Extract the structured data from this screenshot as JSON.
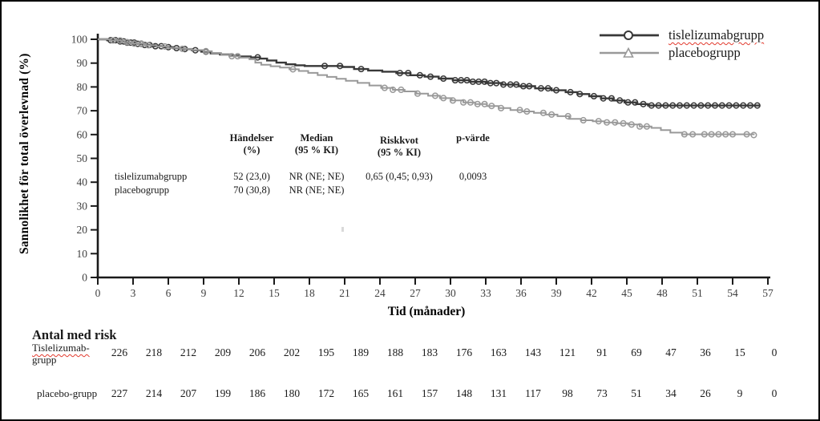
{
  "frame": {
    "bg": "#ffffff",
    "border_color": "#000000"
  },
  "chart": {
    "ylabel": "Sannolikhet för total överlevnad (%)",
    "xlabel": "Tid (månader)",
    "axis_color": "#1a1a1a",
    "tick_label_color": "#3f3f3f",
    "legend": [
      {
        "label": "tislelizumabgrupp",
        "marker": "circle",
        "color": "#383838"
      },
      {
        "label": "placebogrupp",
        "marker": "triangle",
        "color": "#999999"
      }
    ]
  },
  "chart_data": {
    "type": "line",
    "subtype": "kaplan-meier-step",
    "title": "",
    "xlabel": "Tid (månader)",
    "ylabel": "Sannolikhet för total överlevnad (%)",
    "xlim": [
      0,
      57
    ],
    "ylim": [
      0,
      100
    ],
    "xticks": [
      0,
      3,
      6,
      9,
      12,
      15,
      18,
      21,
      24,
      27,
      30,
      33,
      36,
      39,
      42,
      45,
      48,
      51,
      54,
      57
    ],
    "yticks": [
      0,
      10,
      20,
      30,
      40,
      50,
      60,
      70,
      80,
      90,
      100
    ],
    "grid": false,
    "legend_position": "top-right",
    "series": [
      {
        "name": "tislelizumabgrupp",
        "color": "#383838",
        "marker": "circle",
        "points": [
          [
            0,
            100
          ],
          [
            0.8,
            99.6
          ],
          [
            1.6,
            99.1
          ],
          [
            2.4,
            98.6
          ],
          [
            3.2,
            98.1
          ],
          [
            4,
            97.6
          ],
          [
            4.8,
            97.1
          ],
          [
            5.6,
            96.7
          ],
          [
            6.4,
            96.3
          ],
          [
            7.2,
            95.9
          ],
          [
            8,
            95.4
          ],
          [
            8.8,
            94.8
          ],
          [
            9.6,
            94.1
          ],
          [
            10.4,
            93.6
          ],
          [
            11.2,
            93.2
          ],
          [
            12,
            92.8
          ],
          [
            13,
            92.4
          ],
          [
            13.8,
            91.9
          ],
          [
            14.4,
            91.1
          ],
          [
            15.2,
            90.2
          ],
          [
            16,
            89.5
          ],
          [
            16.8,
            89.1
          ],
          [
            17.6,
            88.8
          ],
          [
            20.8,
            88.4
          ],
          [
            21.8,
            87.5
          ],
          [
            23,
            86.9
          ],
          [
            24.2,
            86.4
          ],
          [
            25.4,
            85.8
          ],
          [
            26.6,
            84.9
          ],
          [
            27.8,
            84.3
          ],
          [
            29,
            83.5
          ],
          [
            30.2,
            82.8
          ],
          [
            31.6,
            82.2
          ],
          [
            33,
            81.6
          ],
          [
            34.4,
            81.0
          ],
          [
            35.8,
            80.3
          ],
          [
            37.2,
            79.4
          ],
          [
            38.6,
            78.6
          ],
          [
            39.8,
            77.8
          ],
          [
            40.8,
            77.0
          ],
          [
            41.8,
            76.1
          ],
          [
            42.8,
            75.2
          ],
          [
            43.8,
            74.3
          ],
          [
            44.8,
            73.5
          ],
          [
            45.8,
            72.8
          ],
          [
            46.8,
            72.2
          ],
          [
            56.3,
            72.2
          ]
        ],
        "censor_months": [
          1.1,
          1.5,
          1.9,
          2.2,
          2.5,
          2.8,
          3.1,
          3.4,
          3.7,
          4.0,
          4.4,
          4.9,
          5.4,
          6.0,
          6.7,
          7.4,
          8.3,
          9.2,
          13.6,
          19.3,
          20.6,
          22.4,
          25.7,
          26.4,
          27.4,
          28.3,
          29.4,
          30.4,
          30.9,
          31.4,
          31.9,
          32.4,
          32.9,
          33.4,
          33.9,
          34.5,
          35.1,
          35.6,
          36.2,
          36.7,
          37.7,
          38.3,
          39.0,
          40.2,
          41.0,
          42.2,
          43.0,
          43.7,
          44.4,
          45.1,
          45.7,
          46.4,
          47.1,
          47.7,
          48.3,
          48.9,
          49.5,
          50.1,
          50.7,
          51.3,
          51.9,
          52.5,
          53.1,
          53.7,
          54.3,
          54.9,
          55.5,
          56.1
        ]
      },
      {
        "name": "placebogrupp",
        "color": "#999999",
        "marker": "triangle",
        "points": [
          [
            0,
            100
          ],
          [
            1,
            99.5
          ],
          [
            2,
            98.8
          ],
          [
            3,
            98.2
          ],
          [
            4,
            97.5
          ],
          [
            5,
            97.0
          ],
          [
            6,
            96.4
          ],
          [
            7,
            96.0
          ],
          [
            8,
            95.5
          ],
          [
            9,
            95.0
          ],
          [
            9.7,
            94.2
          ],
          [
            10.5,
            93.5
          ],
          [
            11.3,
            92.9
          ],
          [
            12.1,
            92.3
          ],
          [
            12.9,
            91.6
          ],
          [
            13.4,
            90.2
          ],
          [
            13.9,
            89.3
          ],
          [
            14.7,
            88.7
          ],
          [
            15.5,
            88.1
          ],
          [
            16.3,
            87.4
          ],
          [
            17.1,
            86.7
          ],
          [
            17.9,
            85.9
          ],
          [
            18.7,
            85.0
          ],
          [
            19.5,
            84.2
          ],
          [
            20.3,
            83.4
          ],
          [
            21.1,
            82.6
          ],
          [
            22.1,
            81.7
          ],
          [
            23.1,
            80.6
          ],
          [
            24.1,
            79.6
          ],
          [
            25.1,
            78.8
          ],
          [
            26.1,
            78.1
          ],
          [
            27.1,
            77.2
          ],
          [
            28.1,
            76.3
          ],
          [
            29.1,
            75.3
          ],
          [
            30.1,
            74.3
          ],
          [
            31.1,
            73.5
          ],
          [
            32.1,
            72.8
          ],
          [
            33.1,
            72.0
          ],
          [
            34.1,
            71.1
          ],
          [
            35.1,
            70.3
          ],
          [
            36.1,
            69.7
          ],
          [
            37.1,
            69.1
          ],
          [
            38.1,
            68.4
          ],
          [
            39.1,
            67.7
          ],
          [
            40.1,
            66.6
          ],
          [
            41.1,
            66.0
          ],
          [
            42.1,
            65.6
          ],
          [
            43.1,
            65.1
          ],
          [
            44.1,
            64.7
          ],
          [
            45.1,
            64.2
          ],
          [
            46.1,
            63.4
          ],
          [
            47.1,
            62.8
          ],
          [
            47.9,
            61.9
          ],
          [
            48.7,
            60.8
          ],
          [
            49.7,
            60.1
          ],
          [
            55.8,
            59.8
          ]
        ],
        "censor_months": [
          1.3,
          1.9,
          2.5,
          3.1,
          3.7,
          4.3,
          5.7,
          7.2,
          9.2,
          11.4,
          11.9,
          16.6,
          24.4,
          25.1,
          25.8,
          27.2,
          28.7,
          29.4,
          30.2,
          31.1,
          31.7,
          32.3,
          32.9,
          33.5,
          34.3,
          35.9,
          36.5,
          37.9,
          38.6,
          40.0,
          41.3,
          42.6,
          43.3,
          44.0,
          44.7,
          45.4,
          46.1,
          46.7,
          49.9,
          50.6,
          51.6,
          52.2,
          52.8,
          53.4,
          54.0,
          55.2,
          55.8
        ]
      }
    ]
  },
  "stats_table": {
    "headers": [
      "Händelser\n(%)",
      "Median\n(95 % KI)",
      "Riskkvot\n(95 % KI)",
      "p-värde"
    ],
    "rows": [
      {
        "label": "tislelizumabgrupp",
        "events": "52 (23,0)",
        "median": "NR (NE; NE)",
        "hr": "0,65 (0,45; 0,93)",
        "p": "0,0093"
      },
      {
        "label": "placebogrupp",
        "events": "70 (30,8)",
        "median": "NR (NE; NE)",
        "hr": "",
        "p": ""
      }
    ]
  },
  "risk_table": {
    "title": "Antal med risk",
    "rows": [
      {
        "label_line1": "Tislelizumab-",
        "label_line2": "grupp",
        "values": [
          226,
          218,
          212,
          209,
          206,
          202,
          195,
          189,
          188,
          183,
          176,
          163,
          143,
          121,
          91,
          69,
          47,
          36,
          15,
          0
        ]
      },
      {
        "label_line1": "placebo-grupp",
        "label_line2": "",
        "values": [
          227,
          214,
          207,
          199,
          186,
          180,
          172,
          165,
          161,
          157,
          148,
          131,
          117,
          98,
          73,
          51,
          34,
          26,
          9,
          0
        ]
      }
    ]
  }
}
